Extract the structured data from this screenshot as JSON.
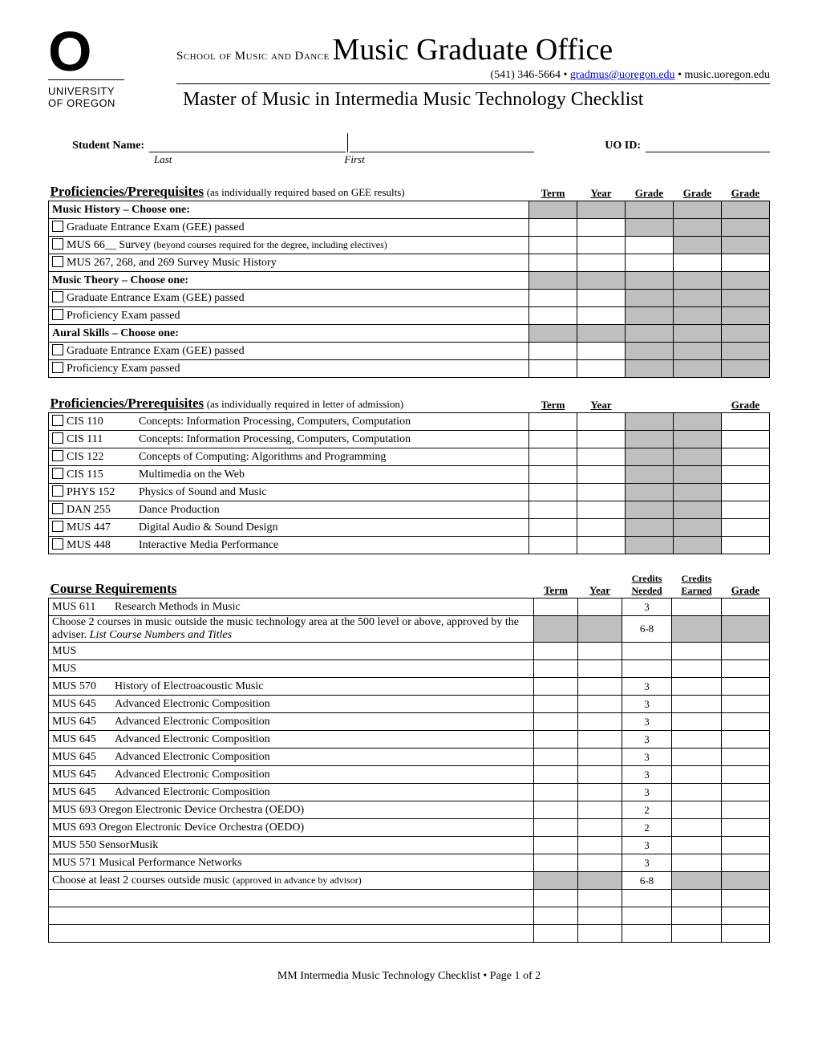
{
  "header": {
    "logo_top": "O",
    "logo_uni": "UNIVERSITY",
    "logo_of": "OF OREGON",
    "school_small": "School of Music and Dance",
    "school_big": "Music Graduate Office",
    "phone": "(541) 346-5664",
    "email": "gradmus@uoregon.edu",
    "site": "music.uoregon.edu",
    "doc_title": "Master of Music in Intermedia Music Technology Checklist"
  },
  "nameRow": {
    "student": "Student Name:",
    "last": "Last",
    "first": "First",
    "uoid": "UO ID:"
  },
  "sec1": {
    "title": "Proficiencies/Prerequisites",
    "note": "(as individually required based on GEE results)",
    "cols": [
      "Term",
      "Year",
      "Grade",
      "Grade",
      "Grade"
    ],
    "rows": [
      {
        "label": "Music History – Choose one:",
        "bold": true,
        "shadeAll": true,
        "cb": false
      },
      {
        "label": "Graduate Entrance Exam (GEE) passed",
        "cb": true,
        "shade": [
          3,
          4,
          5
        ]
      },
      {
        "label": "MUS 66__ Survey",
        "after": "(beyond courses required for the degree, including electives)",
        "cb": true,
        "shade": [
          4,
          5
        ]
      },
      {
        "label": "MUS 267, 268, and 269 Survey Music History",
        "cb": true,
        "shade": []
      },
      {
        "label": "Music Theory – Choose one:",
        "bold": true,
        "shadeAll": true,
        "cb": false
      },
      {
        "label": "Graduate Entrance Exam (GEE) passed",
        "cb": true,
        "shade": [
          3,
          4,
          5
        ]
      },
      {
        "label": "Proficiency Exam passed",
        "cb": true,
        "shade": [
          3,
          4,
          5
        ]
      },
      {
        "label": "Aural Skills – Choose one:",
        "bold": true,
        "shadeAll": true,
        "cb": false
      },
      {
        "label": "Graduate Entrance Exam (GEE) passed",
        "cb": true,
        "shade": [
          3,
          4,
          5
        ]
      },
      {
        "label": "Proficiency Exam passed",
        "cb": true,
        "shade": [
          3,
          4,
          5
        ]
      }
    ]
  },
  "sec2": {
    "title": "Proficiencies/Prerequisites",
    "note": "(as individually required in letter of admission)",
    "cols": [
      "Term",
      "Year",
      "",
      "",
      "Grade"
    ],
    "rows": [
      {
        "code": "CIS 110",
        "desc": "Concepts: Information Processing, Computers, Computation"
      },
      {
        "code": "CIS 111",
        "desc": "Concepts: Information Processing, Computers, Computation"
      },
      {
        "code": "CIS 122",
        "desc": "Concepts of Computing: Algorithms and Programming"
      },
      {
        "code": "CIS 115",
        "desc": "Multimedia on the Web"
      },
      {
        "code": "PHYS 152",
        "desc": "Physics of Sound and Music"
      },
      {
        "code": "DAN 255",
        "desc": "Dance Production"
      },
      {
        "code": "MUS 447",
        "desc": "Digital Audio & Sound Design"
      },
      {
        "code": "MUS 448",
        "desc": "Interactive Media Performance"
      }
    ]
  },
  "sec3": {
    "title": "Course Requirements",
    "cols": [
      "Term",
      "Year",
      "Credits Needed",
      "Credits Earned",
      "Grade"
    ],
    "rows": [
      {
        "code": "MUS 611",
        "desc": "Research Methods in Music",
        "cred": "3"
      },
      {
        "span": "Choose 2 courses in music outside the music technology area at the 500 level or above, approved by the adviser.",
        "italic": "List Course Numbers and Titles",
        "cred": "6-8",
        "shadeTerm": true,
        "shadeRest": true
      },
      {
        "code": "MUS",
        "desc": ""
      },
      {
        "code": "MUS",
        "desc": ""
      },
      {
        "code": "MUS 570",
        "desc": "History of Electroacoustic Music",
        "cred": "3"
      },
      {
        "code": "MUS 645",
        "desc": "Advanced Electronic Composition",
        "cred": "3"
      },
      {
        "code": "MUS 645",
        "desc": "Advanced Electronic Composition",
        "cred": "3"
      },
      {
        "code": "MUS 645",
        "desc": "Advanced Electronic Composition",
        "cred": "3"
      },
      {
        "code": "MUS 645",
        "desc": "Advanced Electronic Composition",
        "cred": "3"
      },
      {
        "code": "MUS 645",
        "desc": "Advanced Electronic Composition",
        "cred": "3"
      },
      {
        "code": "MUS 645",
        "desc": "Advanced Electronic Composition",
        "cred": "3"
      },
      {
        "span": "MUS 693 Oregon Electronic Device Orchestra (OEDO)",
        "cred": "2"
      },
      {
        "span": "MUS 693 Oregon Electronic Device Orchestra (OEDO)",
        "cred": "2"
      },
      {
        "span": "MUS 550 SensorMusik",
        "cred": "3"
      },
      {
        "span": "MUS 571 Musical Performance Networks",
        "cred": "3"
      },
      {
        "span": "Choose at least 2 courses outside music",
        "italic2": "(approved in advance by advisor)",
        "cred": "6-8",
        "shadeTerm": true,
        "shadeRest": true
      },
      {
        "blank": true
      },
      {
        "blank": true
      },
      {
        "blank": true
      }
    ]
  },
  "footer": {
    "text": "MM Intermedia Music Technology Checklist • Page",
    "page": "1 of 2"
  }
}
